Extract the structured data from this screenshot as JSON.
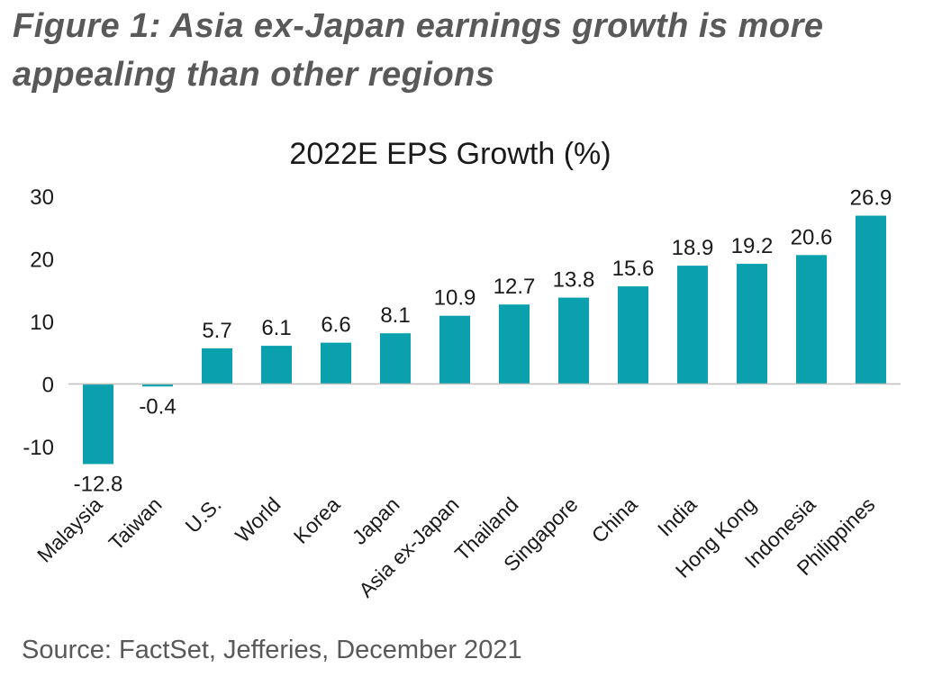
{
  "figure": {
    "title_line1": "Figure 1: Asia ex-Japan earnings growth is more",
    "title_line2": "appealing than other regions",
    "source": "Source: FactSet, Jefferies, December 2021"
  },
  "colors": {
    "bar": "#0aa0ae",
    "axis": "#bfbfbf",
    "text": "#1a1a1a",
    "title_grey": "#595959"
  },
  "chart_data": {
    "type": "bar",
    "title": "2022E EPS Growth (%)",
    "xlabel": "",
    "ylabel": "",
    "ylim": [
      -10,
      30
    ],
    "yticks": [
      30,
      20,
      10,
      0,
      -10
    ],
    "grid": false,
    "legend": "none",
    "categories": [
      "Malaysia",
      "Taiwan",
      "U.S.",
      "World",
      "Korea",
      "Japan",
      "Asia ex-Japan",
      "Thailand",
      "Singapore",
      "China",
      "India",
      "Hong Kong",
      "Indonesia",
      "Philippines"
    ],
    "values": [
      -12.8,
      -0.4,
      5.7,
      6.1,
      6.6,
      8.1,
      10.9,
      12.7,
      13.8,
      15.6,
      18.9,
      19.2,
      20.6,
      26.9
    ],
    "value_labels": [
      "-12.8",
      "-0.4",
      "5.7",
      "6.1",
      "6.6",
      "8.1",
      "10.9",
      "12.7",
      "13.8",
      "15.6",
      "18.9",
      "19.2",
      "20.6",
      "26.9"
    ]
  }
}
